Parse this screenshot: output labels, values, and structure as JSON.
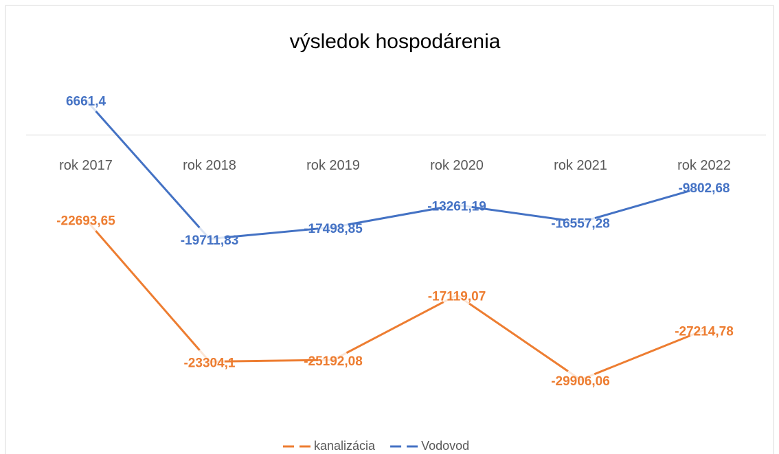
{
  "chart_data": {
    "type": "line",
    "stacked": true,
    "title": "výsledok hospodárenia",
    "categories": [
      "rok 2017",
      "rok 2018",
      "rok 2019",
      "rok 2020",
      "rok 2021",
      "rok 2022"
    ],
    "series": [
      {
        "name": "kanalizácia",
        "color": "#ed7d31",
        "values": [
          -22693.65,
          -23304.1,
          -25192.08,
          -17119.07,
          -29906.06,
          -27214.78
        ],
        "value_labels": [
          "-22693,65",
          "-23304,1",
          "-25192,08",
          "-17119,07",
          "-29906,06",
          "-27214,78"
        ]
      },
      {
        "name": "Vodovod",
        "color": "#4472c4",
        "values": [
          6661.4,
          -19711.83,
          -17498.85,
          -13261.19,
          -16557.28,
          -9802.68
        ],
        "value_labels": [
          "6661,4",
          "-19711,83",
          "-17498,85",
          "-13261,19",
          "-16557,28",
          "-9802,68"
        ]
      }
    ],
    "ylim": [
      -50000,
      10000
    ],
    "legend": "bottom"
  }
}
